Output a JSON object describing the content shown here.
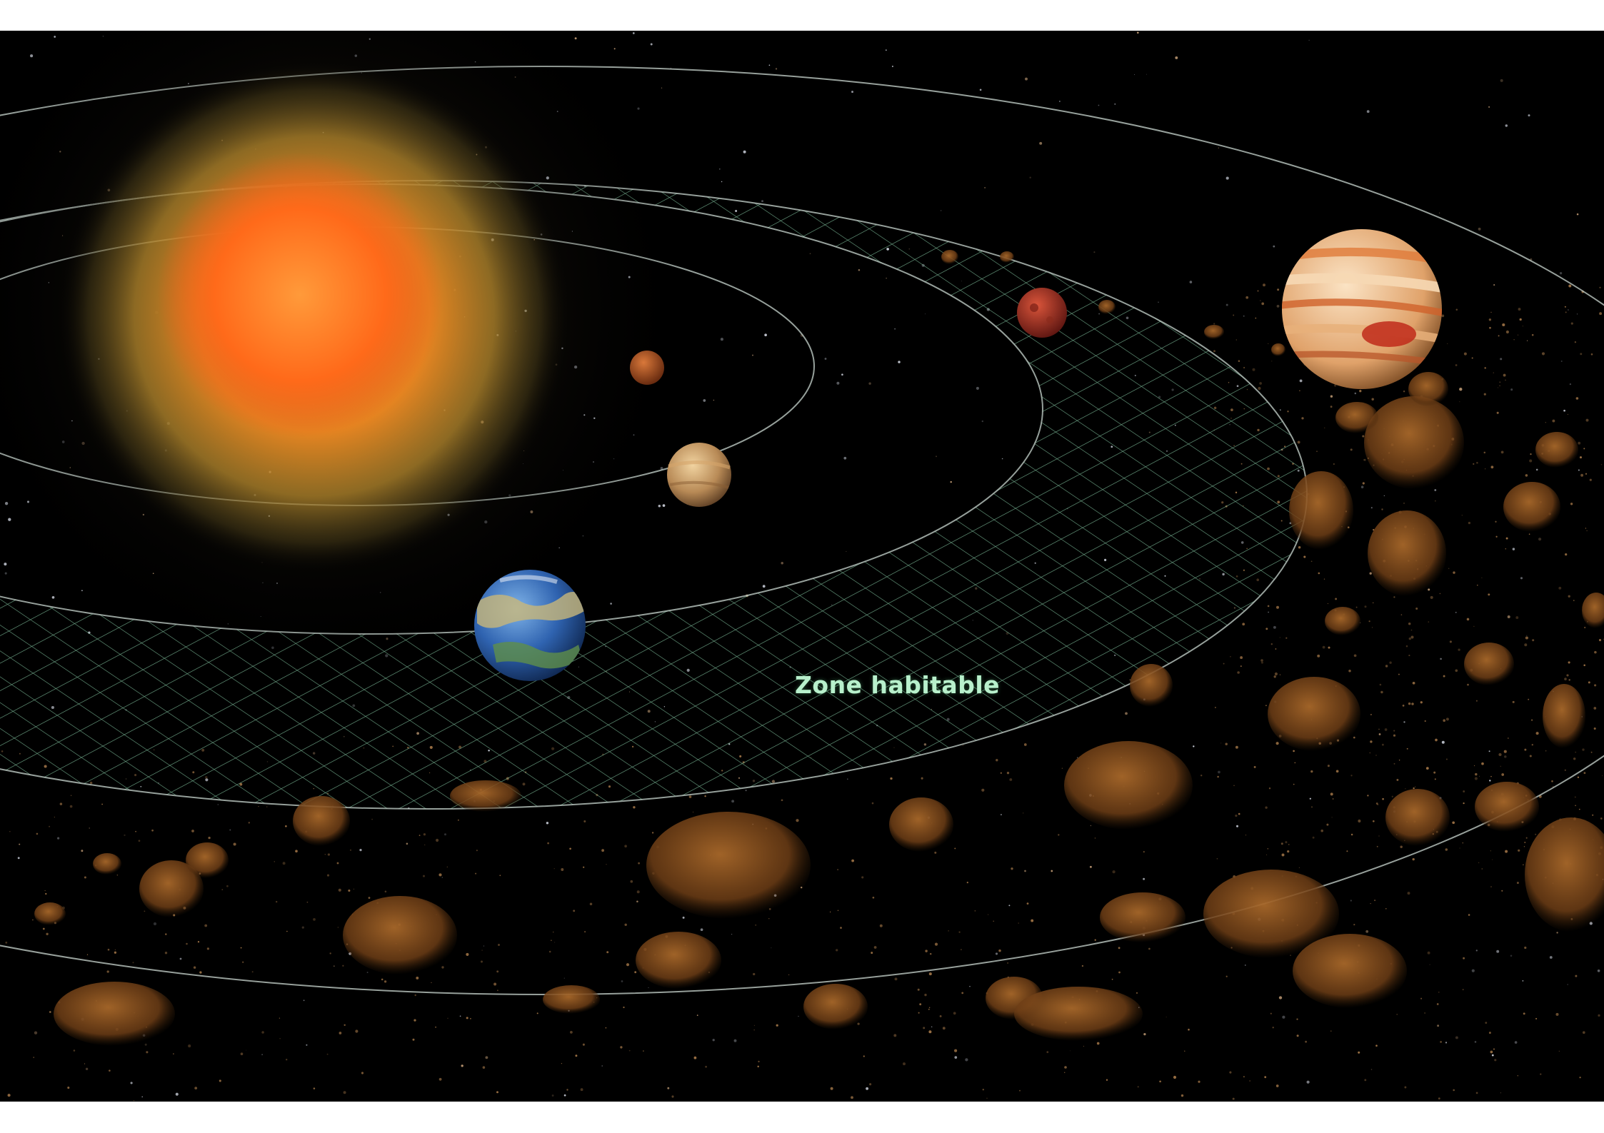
{
  "diagram": {
    "label": "Zone habitable",
    "colors": {
      "background": "#000000",
      "label": "#b8f0cc",
      "orbit_line": "#c9d6cf",
      "habitable_grid": "#3fa874",
      "sun_core": "#ff6a1a",
      "sun_corona": "#c8922a",
      "asteroid": "#7a4a1c"
    },
    "icons": [
      "star-sun",
      "planet-mercury-like",
      "planet-venus-like",
      "planet-earth-like",
      "planet-mars-like",
      "planet-jupiter-like",
      "asteroid-belt"
    ]
  }
}
